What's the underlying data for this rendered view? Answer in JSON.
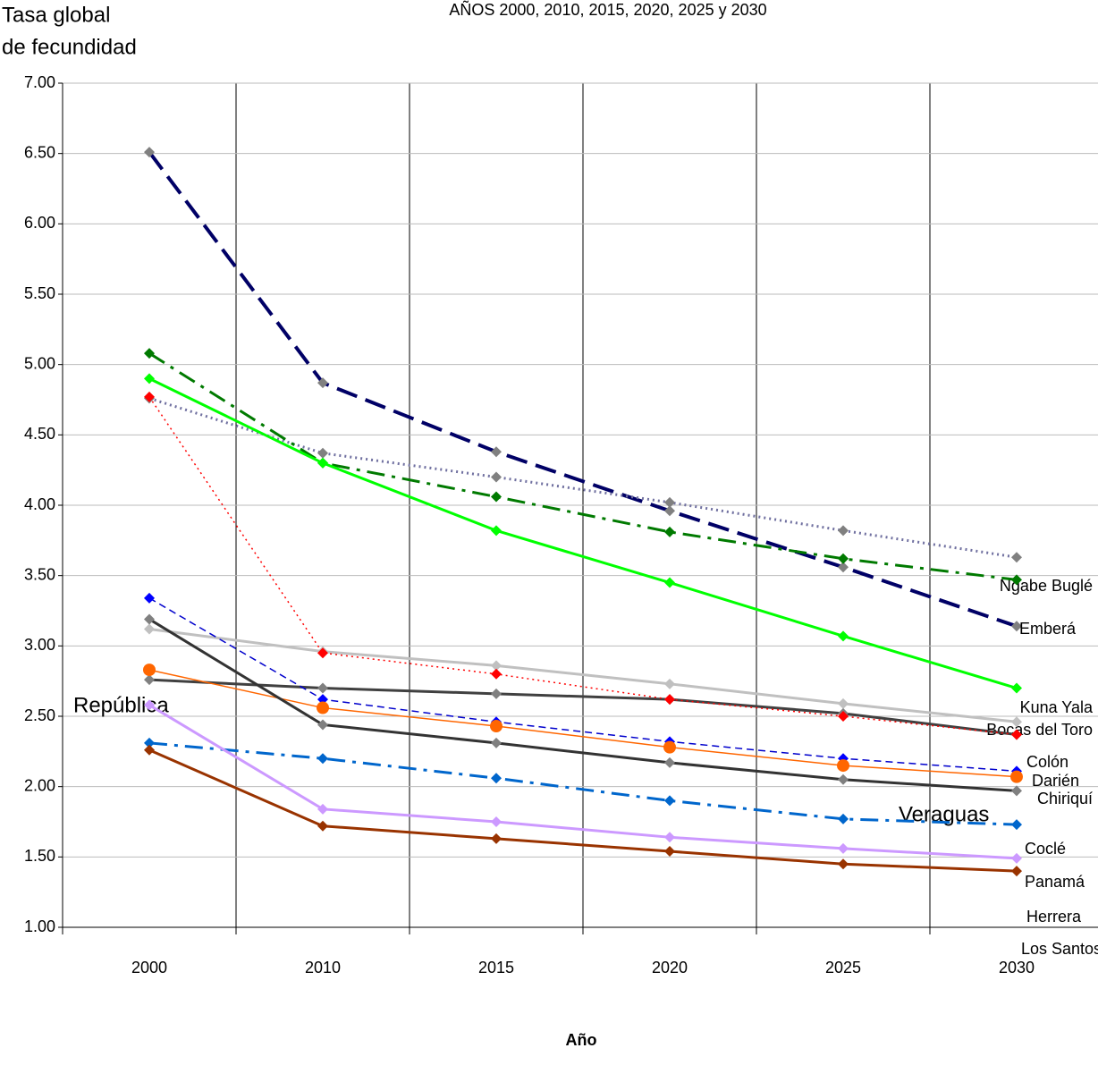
{
  "chart_data": {
    "type": "line",
    "title": "AÑOS 2000, 2010, 2015, 2020, 2025 y 2030",
    "y_label_lines": [
      "Tasa global",
      "de fecundidad"
    ],
    "x_label": "Año",
    "categories": [
      "2000",
      "2010",
      "2015",
      "2020",
      "2025",
      "2030"
    ],
    "ylim": [
      1,
      7
    ],
    "yticks": [
      {
        "value": 1,
        "label": "1.00"
      },
      {
        "value": 1.5,
        "label": "1.50"
      },
      {
        "value": 2,
        "label": "2.00"
      },
      {
        "value": 2.5,
        "label": "2.50"
      },
      {
        "value": 3,
        "label": "3.00"
      },
      {
        "value": 3.5,
        "label": "3.50"
      },
      {
        "value": 4,
        "label": "4.00"
      },
      {
        "value": 4.5,
        "label": "4.50"
      },
      {
        "value": 5,
        "label": "5.00"
      },
      {
        "value": 5.5,
        "label": "5.50"
      },
      {
        "value": 6,
        "label": "6.00"
      },
      {
        "value": 6.5,
        "label": "6.50"
      },
      {
        "value": 7,
        "label": "7.00"
      }
    ],
    "grid": true,
    "series": [
      {
        "name": "Ngabe Buglé",
        "color": "#000066",
        "marker_color": "#808080",
        "line_style": "longdash",
        "width": 4,
        "values": [
          6.51,
          4.87,
          4.38,
          3.96,
          3.56,
          3.14
        ]
      },
      {
        "name": "Kuna Yala",
        "color": "#7070a0",
        "marker_color": "#808080",
        "line_style": "dotted",
        "width": 3,
        "values": [
          4.76,
          4.37,
          4.2,
          4.02,
          3.82,
          3.63
        ]
      },
      {
        "name": "Emberá",
        "color": "#007a00",
        "marker_color": "#007a00",
        "line_style": "dashdot",
        "width": 3,
        "values": [
          5.08,
          4.3,
          4.06,
          3.81,
          3.62,
          3.47
        ]
      },
      {
        "name": "Bocas del Toro",
        "color": "#00ff00",
        "marker_color": "#00ff00",
        "line_style": "solid",
        "width": 3,
        "values": [
          4.9,
          4.3,
          3.82,
          3.45,
          3.07,
          2.7
        ]
      },
      {
        "name": "Colón",
        "color": "#c0c0c0",
        "marker_color": "#c0c0c0",
        "line_style": "solid",
        "width": 3,
        "values": [
          3.12,
          2.96,
          2.86,
          2.73,
          2.59,
          2.46
        ]
      },
      {
        "name": "Darién",
        "color": "#404040",
        "marker_color": "#808080",
        "line_style": "solid",
        "width": 3,
        "values": [
          2.76,
          2.7,
          2.66,
          2.62,
          2.52,
          2.37
        ]
      },
      {
        "name": "Chiriquí",
        "color": "#ff0000",
        "marker_color": "#ff0000",
        "line_style": "dotted",
        "width": 1.5,
        "values": [
          4.77,
          2.95,
          2.8,
          2.62,
          2.5,
          2.37
        ]
      },
      {
        "name": "Veraguas",
        "color": "#0000cc",
        "marker_color": "#0000ff",
        "line_style": "dashed",
        "width": 1.5,
        "values": [
          3.34,
          2.62,
          2.46,
          2.32,
          2.2,
          2.11
        ]
      },
      {
        "name": "República",
        "color": "#ff6600",
        "marker_color": "#ff6600",
        "marker": "circle",
        "line_style": "solid",
        "width": 1.5,
        "values": [
          2.83,
          2.56,
          2.43,
          2.28,
          2.15,
          2.07
        ]
      },
      {
        "name": "Coclé",
        "color": "#333333",
        "marker_color": "#808080",
        "line_style": "solid",
        "width": 3,
        "values": [
          3.19,
          2.44,
          2.31,
          2.17,
          2.05,
          1.97
        ]
      },
      {
        "name": "Panamá",
        "color": "#0066cc",
        "marker_color": "#0066cc",
        "line_style": "dashdot",
        "width": 3,
        "values": [
          2.31,
          2.2,
          2.06,
          1.9,
          1.77,
          1.73
        ]
      },
      {
        "name": "Herrera",
        "color": "#cc99ff",
        "marker_color": "#cc99ff",
        "line_style": "solid",
        "width": 3,
        "values": [
          2.58,
          1.84,
          1.75,
          1.64,
          1.56,
          1.49
        ]
      },
      {
        "name": "Los Santos",
        "color": "#993300",
        "marker_color": "#993300",
        "line_style": "solid",
        "width": 3,
        "values": [
          2.26,
          1.72,
          1.63,
          1.54,
          1.45,
          1.4
        ]
      }
    ]
  }
}
